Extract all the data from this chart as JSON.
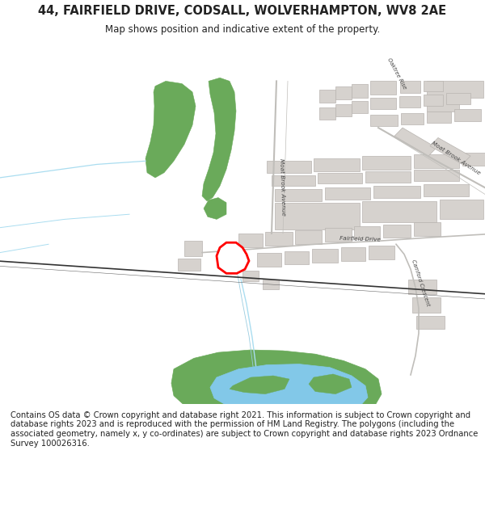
{
  "title": "44, FAIRFIELD DRIVE, CODSALL, WOLVERHAMPTON, WV8 2AE",
  "subtitle": "Map shows position and indicative extent of the property.",
  "footer": "Contains OS data © Crown copyright and database right 2021. This information is subject to Crown copyright and database rights 2023 and is reproduced with the permission of HM Land Registry. The polygons (including the associated geometry, namely x, y co-ordinates) are subject to Crown copyright and database rights 2023 Ordnance Survey 100026316.",
  "bg_color": "#ffffff",
  "map_bg": "#f7f7f2",
  "building_color": "#d6d2ce",
  "building_edge": "#b8b4b0",
  "green_color": "#6aaa5a",
  "water_color": "#82c8e8",
  "stream_color": "#aaddf0",
  "road_edge": "#c8c8c8",
  "highlight_color": "#ff0000",
  "text_color": "#222222",
  "label_color": "#444444",
  "title_fontsize": 10.5,
  "subtitle_fontsize": 8.5,
  "footer_fontsize": 7.2
}
